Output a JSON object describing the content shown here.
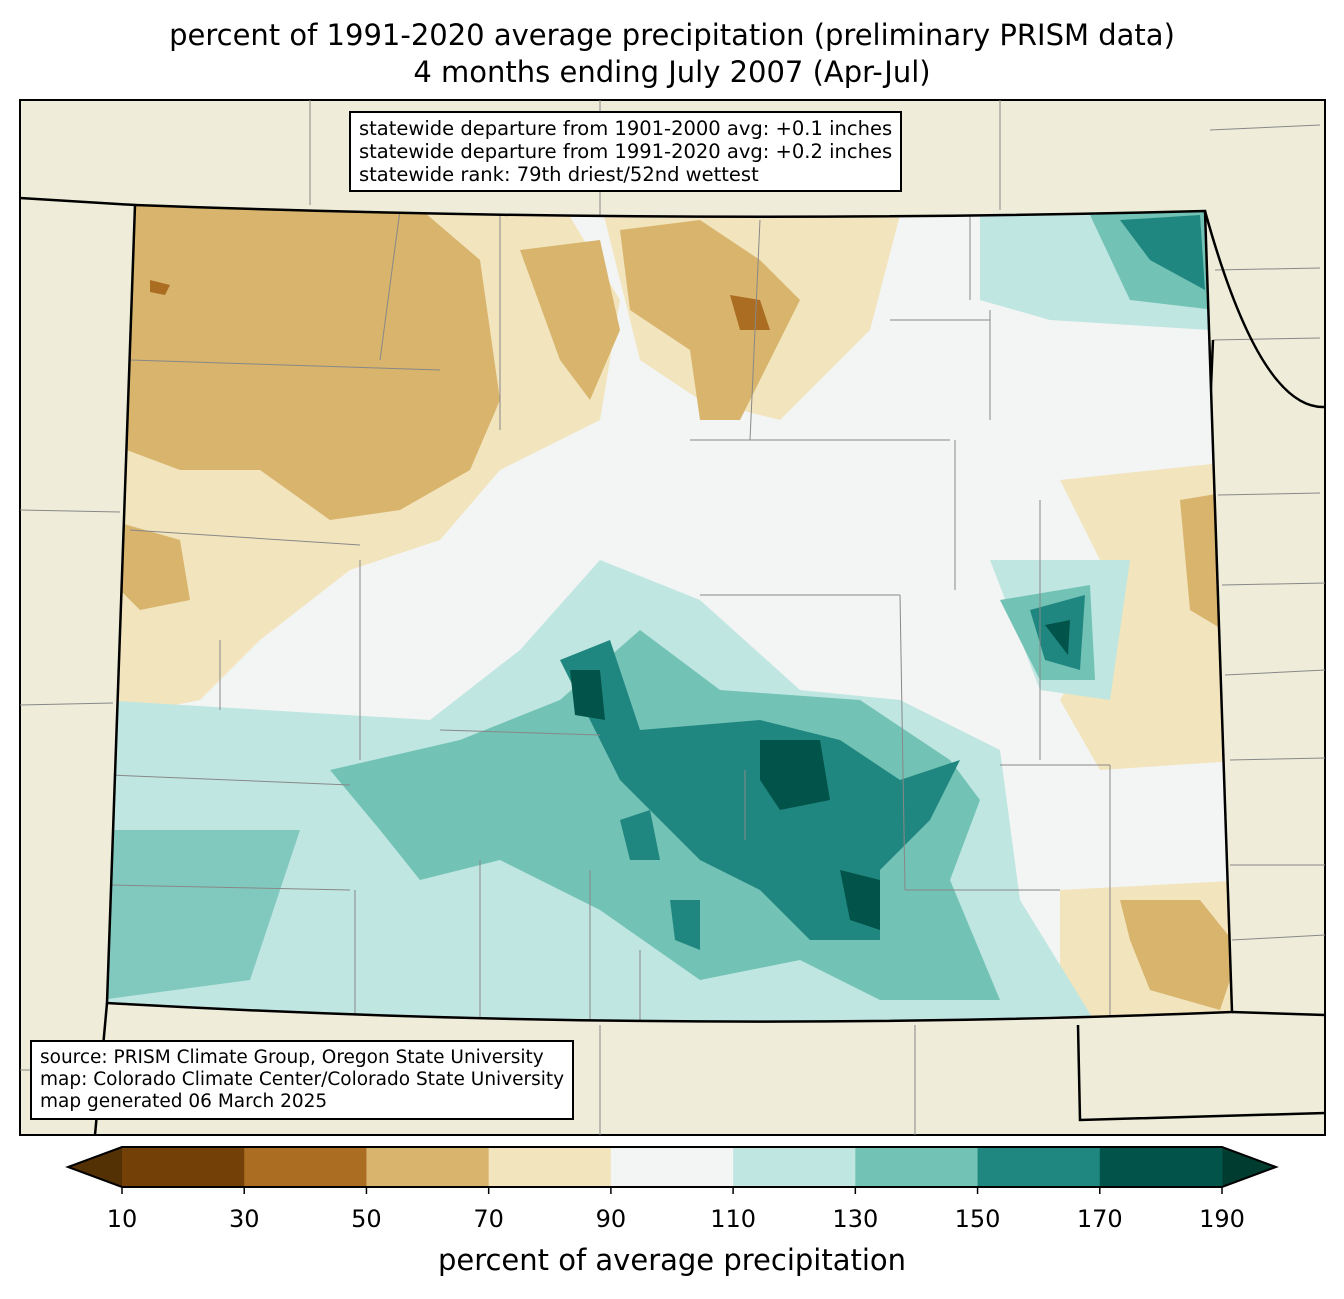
{
  "title_line1": "percent of 1991-2020 average precipitation (preliminary PRISM data)",
  "title_line2": "4 months ending July 2007 (Apr-Jul)",
  "stats": {
    "line1": "statewide departure from 1901-2000 avg: +0.1 inches",
    "line2": "statewide departure from 1991-2020 avg: +0.2 inches",
    "line3": "statewide rank: 79th driest/52nd wettest"
  },
  "credits": {
    "line1": "source: PRISM Climate Group, Oregon State University",
    "line2": "map: Colorado Climate Center/Colorado State University",
    "line3": "map generated 06 March 2025"
  },
  "colorbar": {
    "label": "percent of average precipitation",
    "ticks": [
      "10",
      "30",
      "50",
      "70",
      "90",
      "110",
      "130",
      "150",
      "170",
      "190"
    ],
    "colors": [
      "#734108",
      "#ab6d22",
      "#d8b46d",
      "#f2e4bd",
      "#f3f5f4",
      "#bfe6e1",
      "#72c2b5",
      "#208780",
      "#02544a"
    ],
    "under_color": "#543005",
    "over_color": "#003c30"
  },
  "map_colors": {
    "background": "#efedd9"
  }
}
